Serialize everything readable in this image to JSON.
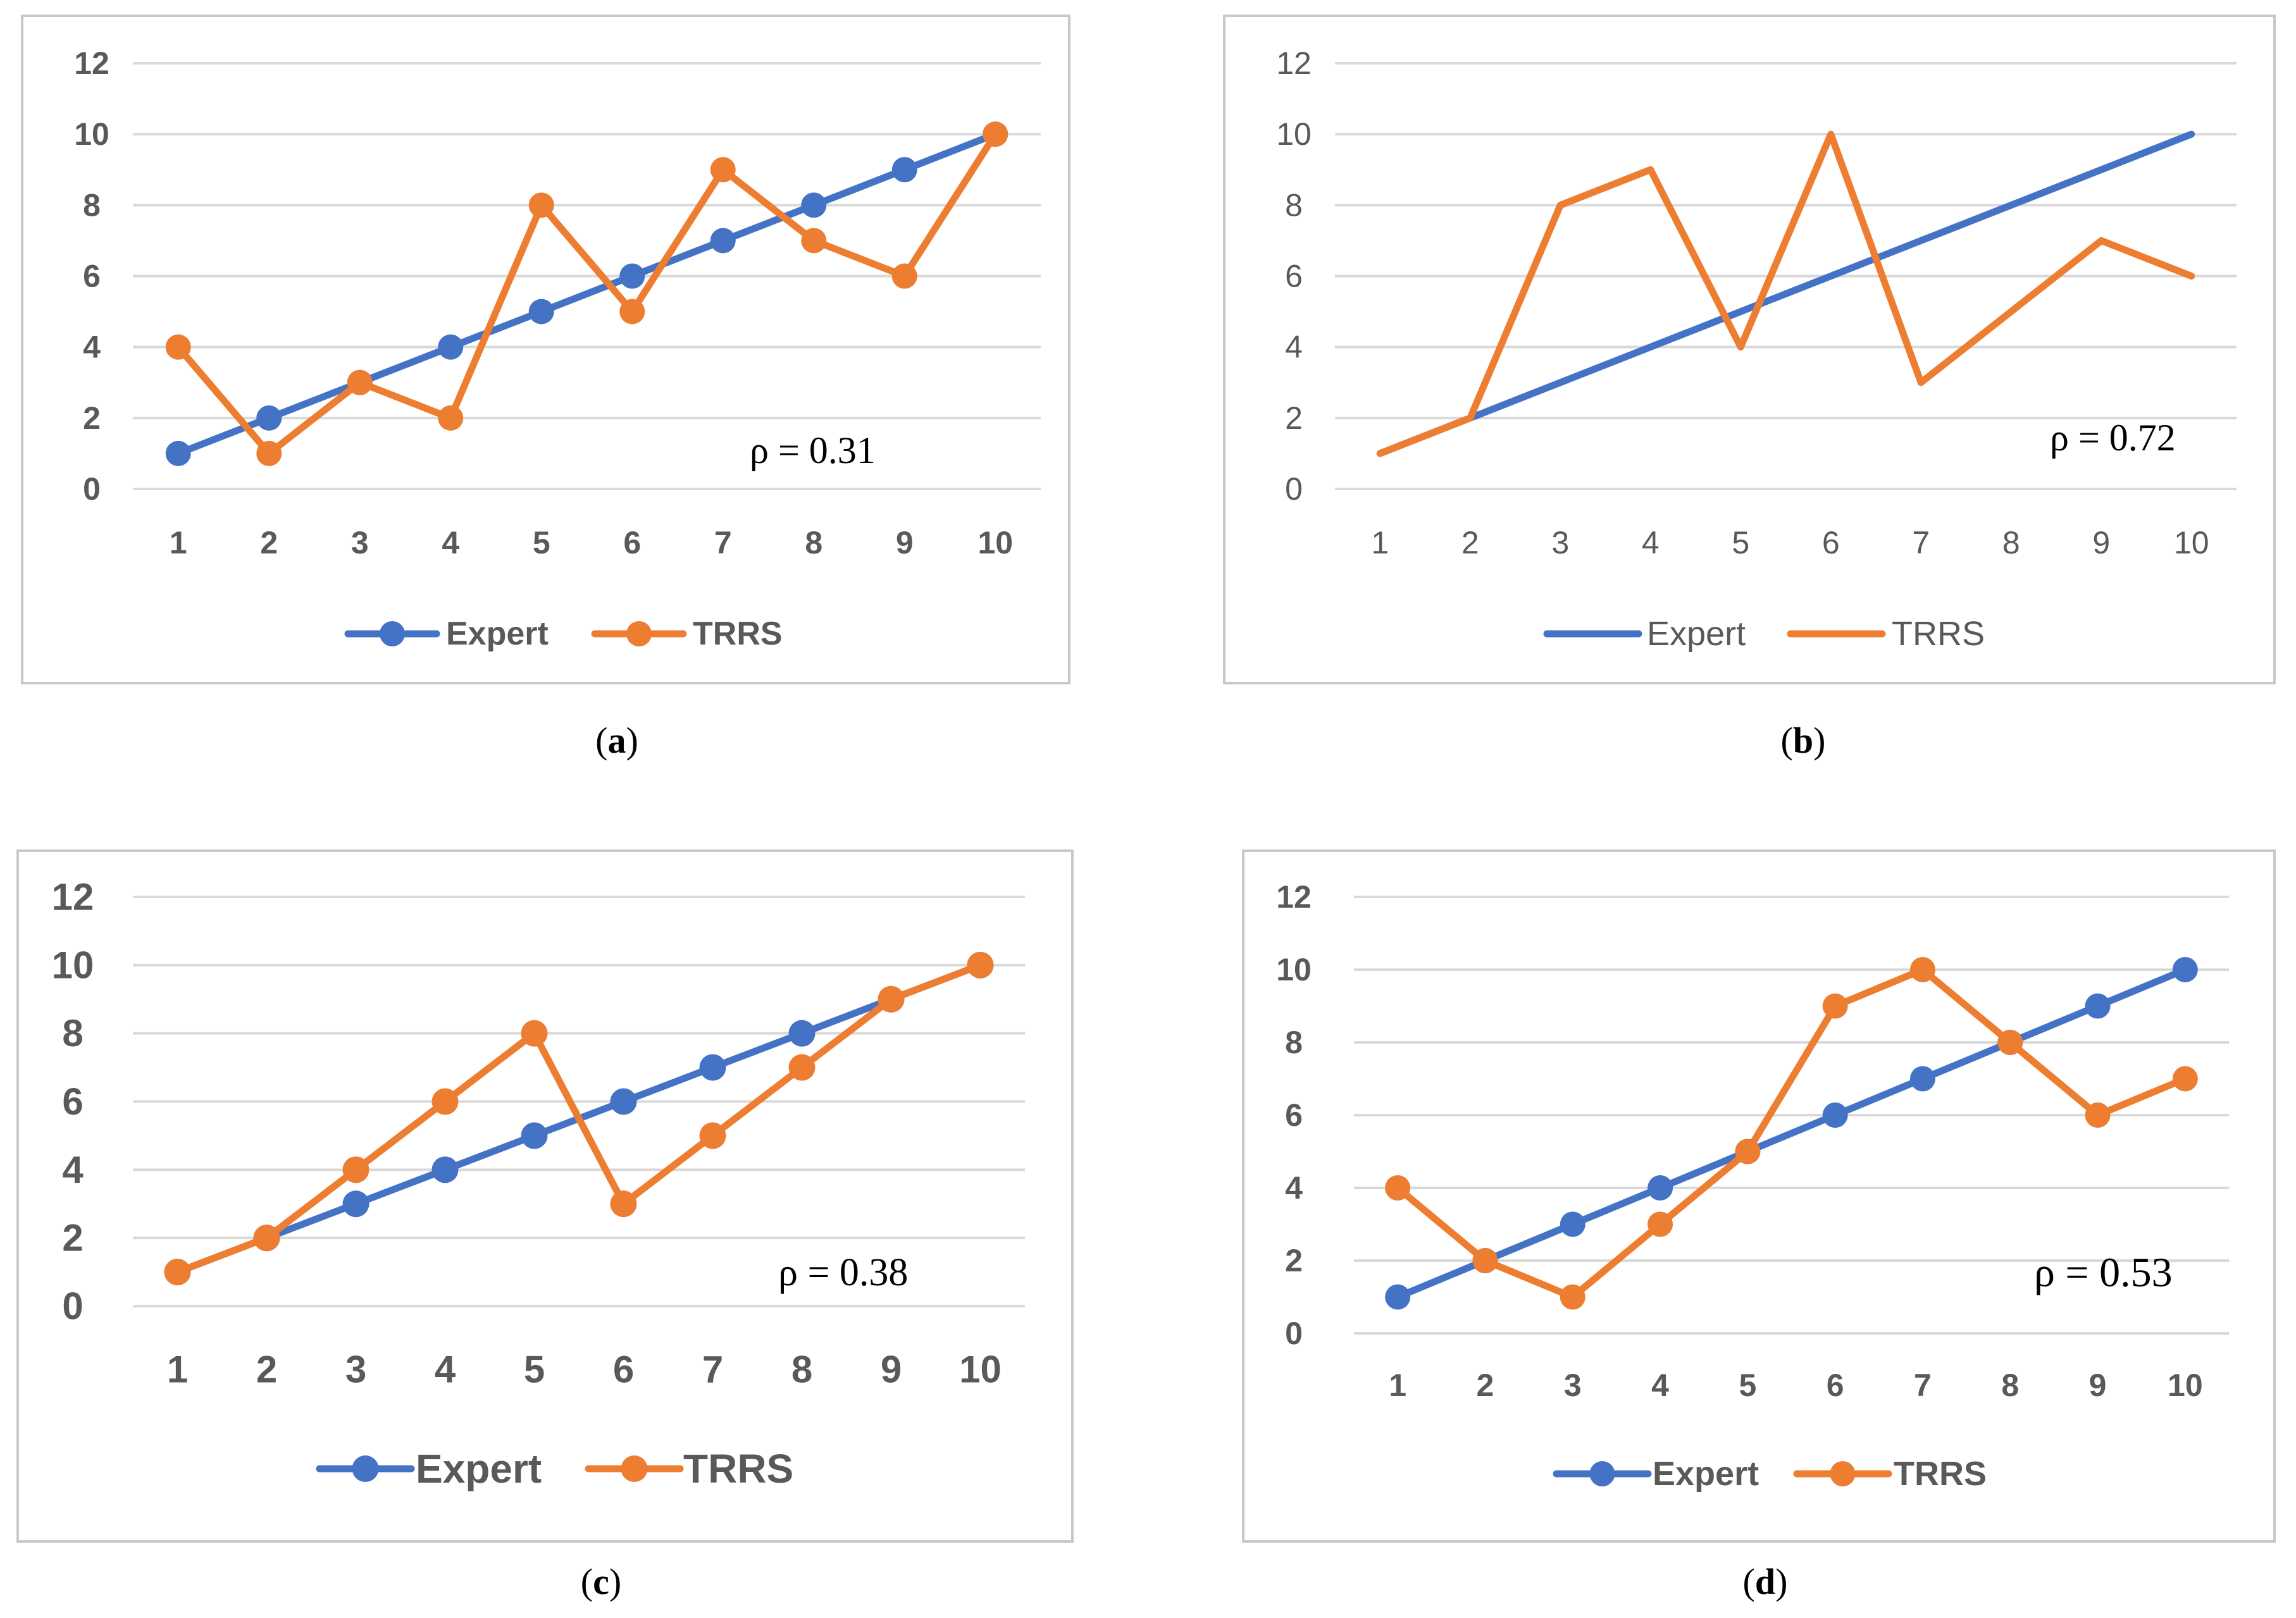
{
  "colors": {
    "expert": "#4472c4",
    "trrs": "#ed7d31"
  },
  "chart_data": [
    {
      "panel": "a",
      "caption": "(a)",
      "caption_letter": "a",
      "type": "line",
      "markers": true,
      "categories": [
        "1",
        "2",
        "3",
        "4",
        "5",
        "6",
        "7",
        "8",
        "9",
        "10"
      ],
      "ylim": [
        0,
        12
      ],
      "yticks": [
        "0",
        "2",
        "4",
        "6",
        "8",
        "10",
        "12"
      ],
      "grid": true,
      "legend": "bottom",
      "annotation": "ρ = 0.31",
      "series": [
        {
          "name": "Expert",
          "values": [
            1,
            2,
            3,
            4,
            5,
            6,
            7,
            8,
            9,
            10
          ]
        },
        {
          "name": "TRRS",
          "values": [
            4,
            1,
            3,
            2,
            8,
            5,
            9,
            7,
            6,
            10
          ]
        }
      ]
    },
    {
      "panel": "b",
      "caption": "(b)",
      "caption_letter": "b",
      "type": "line",
      "markers": false,
      "categories": [
        "1",
        "2",
        "3",
        "4",
        "5",
        "6",
        "7",
        "8",
        "9",
        "10"
      ],
      "ylim": [
        0,
        12
      ],
      "yticks": [
        "0",
        "2",
        "4",
        "6",
        "8",
        "10",
        "12"
      ],
      "grid": true,
      "legend": "bottom",
      "annotation": "ρ = 0.72",
      "series": [
        {
          "name": "Expert",
          "values": [
            1,
            2,
            3,
            4,
            5,
            6,
            7,
            8,
            9,
            10
          ]
        },
        {
          "name": "TRRS",
          "values": [
            1,
            2,
            8,
            9,
            4,
            10,
            3,
            5,
            7,
            6
          ]
        }
      ]
    },
    {
      "panel": "c",
      "caption": "(c)",
      "caption_letter": "c",
      "type": "line",
      "markers": true,
      "categories": [
        "1",
        "2",
        "3",
        "4",
        "5",
        "6",
        "7",
        "8",
        "9",
        "10"
      ],
      "ylim": [
        0,
        12
      ],
      "yticks": [
        "0",
        "2",
        "4",
        "6",
        "8",
        "10",
        "12"
      ],
      "grid": true,
      "legend": "bottom",
      "annotation": "ρ = 0.38",
      "series": [
        {
          "name": "Expert",
          "values": [
            1,
            2,
            3,
            4,
            5,
            6,
            7,
            8,
            9,
            10
          ]
        },
        {
          "name": "TRRS",
          "values": [
            1,
            2,
            4,
            6,
            8,
            3,
            5,
            7,
            9,
            10
          ]
        }
      ]
    },
    {
      "panel": "d",
      "caption": "(d)",
      "caption_letter": "d",
      "type": "line",
      "markers": true,
      "categories": [
        "1",
        "2",
        "3",
        "4",
        "5",
        "6",
        "7",
        "8",
        "9",
        "10"
      ],
      "ylim": [
        0,
        12
      ],
      "yticks": [
        "0",
        "2",
        "4",
        "6",
        "8",
        "10",
        "12"
      ],
      "grid": true,
      "legend": "bottom",
      "annotation": "ρ = 0.53",
      "series": [
        {
          "name": "Expert",
          "values": [
            1,
            2,
            3,
            4,
            5,
            6,
            7,
            8,
            9,
            10
          ]
        },
        {
          "name": "TRRS",
          "values": [
            4,
            2,
            1,
            3,
            5,
            9,
            10,
            8,
            6,
            7
          ]
        }
      ]
    }
  ]
}
